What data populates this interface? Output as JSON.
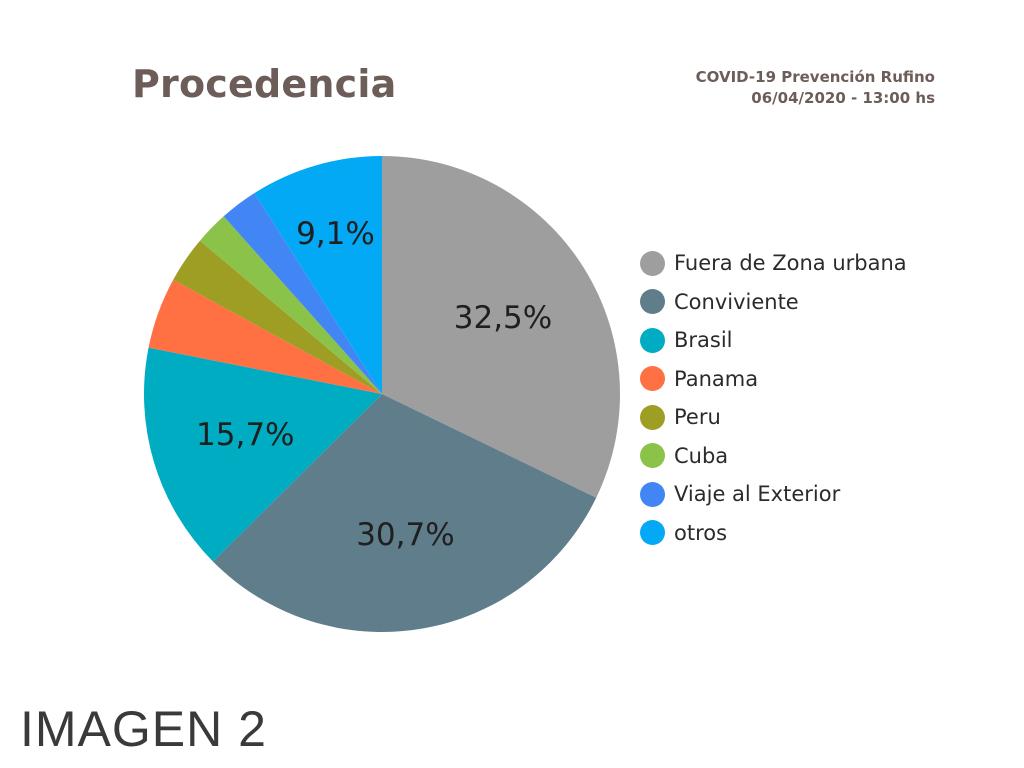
{
  "header": {
    "title": "Procedencia",
    "source_line1": "COVID-19 Prevención Rufino",
    "source_line2": "06/04/2020 - 13:00 hs"
  },
  "chart_data": {
    "type": "pie",
    "title": "Procedencia",
    "legend_position": "right",
    "slices": [
      {
        "name": "Fuera de Zona urbana",
        "value": 32.5,
        "label": "32,5%",
        "color": "#9e9e9e"
      },
      {
        "name": "Conviviente",
        "value": 30.7,
        "label": "30,7%",
        "color": "#607d8b"
      },
      {
        "name": "Brasil",
        "value": 15.7,
        "label": "15,7%",
        "color": "#00acc1"
      },
      {
        "name": "Panama",
        "value": 4.9,
        "label": "",
        "color": "#ff7043"
      },
      {
        "name": "Peru",
        "value": 3.2,
        "label": "",
        "color": "#9e9d24"
      },
      {
        "name": "Cuba",
        "value": 2.3,
        "label": "",
        "color": "#8bc34a"
      },
      {
        "name": "Viaje al Exterior",
        "value": 2.6,
        "label": "",
        "color": "#4285f4"
      },
      {
        "name": "otros",
        "value": 9.1,
        "label": "9,1%",
        "color": "#03a9f4"
      }
    ]
  },
  "caption": "IMAGEN 2"
}
